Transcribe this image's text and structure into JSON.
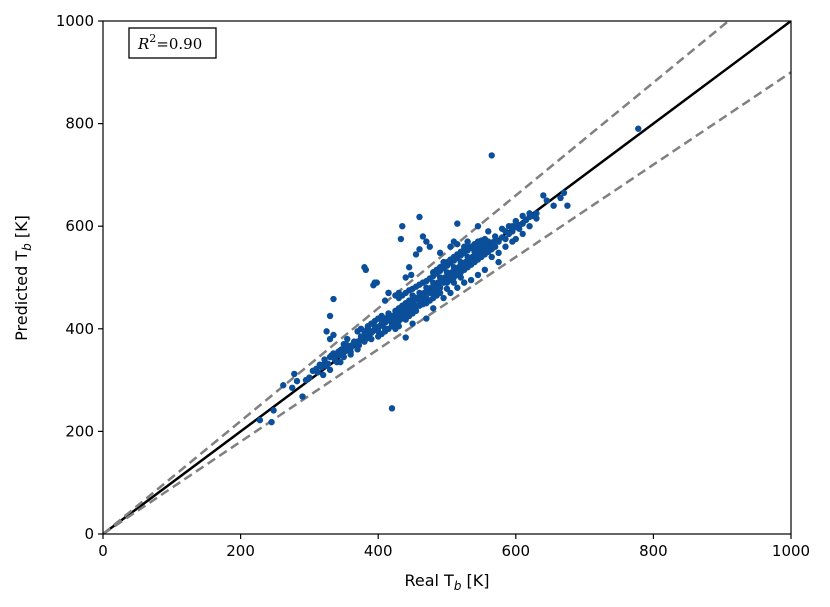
{
  "chart_data": {
    "type": "scatter",
    "xlabel": "Real T",
    "xlabel_sub": "b",
    "xlabel_unit": " [K]",
    "ylabel": "Predicted T",
    "ylabel_sub": "b",
    "ylabel_unit": " [K]",
    "xlim": [
      0,
      1000
    ],
    "ylim": [
      0,
      1000
    ],
    "xticks": [
      0,
      200,
      400,
      600,
      800,
      1000
    ],
    "yticks": [
      0,
      200,
      400,
      600,
      800,
      1000
    ],
    "grid": false,
    "annotation": {
      "r2_label": "R",
      "r2_sup": "2",
      "r2_value": "=0.90",
      "placement": "top-left"
    },
    "reference_lines": [
      {
        "name": "identity",
        "slope": 1.0,
        "style": "solid",
        "color": "#000000"
      },
      {
        "name": "upper-bound",
        "slope": 1.1,
        "style": "dashed",
        "color": "#808080"
      },
      {
        "name": "lower-bound",
        "slope": 0.9,
        "style": "dashed",
        "color": "#808080"
      }
    ],
    "point_color": "#0b4f9a",
    "points": [
      [
        228,
        222
      ],
      [
        245,
        218
      ],
      [
        248,
        241
      ],
      [
        262,
        290
      ],
      [
        275,
        285
      ],
      [
        278,
        312
      ],
      [
        282,
        298
      ],
      [
        290,
        268
      ],
      [
        295,
        300
      ],
      [
        300,
        305
      ],
      [
        305,
        318
      ],
      [
        310,
        322
      ],
      [
        312,
        315
      ],
      [
        318,
        325
      ],
      [
        320,
        330
      ],
      [
        322,
        340
      ],
      [
        325,
        328
      ],
      [
        327,
        332
      ],
      [
        330,
        345
      ],
      [
        332,
        348
      ],
      [
        335,
        352
      ],
      [
        337,
        340
      ],
      [
        340,
        350
      ],
      [
        342,
        355
      ],
      [
        345,
        348
      ],
      [
        347,
        360
      ],
      [
        350,
        355
      ],
      [
        352,
        362
      ],
      [
        355,
        358
      ],
      [
        357,
        365
      ],
      [
        360,
        362
      ],
      [
        362,
        368
      ],
      [
        365,
        370
      ],
      [
        367,
        372
      ],
      [
        370,
        375
      ],
      [
        372,
        368
      ],
      [
        375,
        380
      ],
      [
        377,
        378
      ],
      [
        380,
        385
      ],
      [
        382,
        388
      ],
      [
        385,
        382
      ],
      [
        387,
        390
      ],
      [
        390,
        392
      ],
      [
        392,
        395
      ],
      [
        395,
        398
      ],
      [
        397,
        400
      ],
      [
        400,
        402
      ],
      [
        402,
        405
      ],
      [
        405,
        408
      ],
      [
        407,
        410
      ],
      [
        410,
        412
      ],
      [
        412,
        415
      ],
      [
        415,
        418
      ],
      [
        417,
        420
      ],
      [
        420,
        422
      ],
      [
        422,
        425
      ],
      [
        425,
        428
      ],
      [
        427,
        430
      ],
      [
        430,
        432
      ],
      [
        432,
        435
      ],
      [
        435,
        438
      ],
      [
        437,
        440
      ],
      [
        440,
        442
      ],
      [
        442,
        445
      ],
      [
        445,
        448
      ],
      [
        447,
        450
      ],
      [
        450,
        452
      ],
      [
        452,
        455
      ],
      [
        455,
        458
      ],
      [
        457,
        460
      ],
      [
        460,
        462
      ],
      [
        462,
        465
      ],
      [
        465,
        468
      ],
      [
        467,
        470
      ],
      [
        470,
        472
      ],
      [
        472,
        475
      ],
      [
        475,
        478
      ],
      [
        477,
        480
      ],
      [
        480,
        482
      ],
      [
        482,
        485
      ],
      [
        485,
        488
      ],
      [
        487,
        490
      ],
      [
        490,
        492
      ],
      [
        492,
        495
      ],
      [
        495,
        498
      ],
      [
        497,
        500
      ],
      [
        500,
        502
      ],
      [
        502,
        505
      ],
      [
        505,
        508
      ],
      [
        507,
        510
      ],
      [
        510,
        512
      ],
      [
        512,
        515
      ],
      [
        515,
        518
      ],
      [
        517,
        520
      ],
      [
        520,
        522
      ],
      [
        522,
        525
      ],
      [
        525,
        528
      ],
      [
        527,
        530
      ],
      [
        530,
        532
      ],
      [
        532,
        535
      ],
      [
        535,
        538
      ],
      [
        537,
        540
      ],
      [
        540,
        542
      ],
      [
        542,
        545
      ],
      [
        545,
        548
      ],
      [
        547,
        550
      ],
      [
        550,
        552
      ],
      [
        552,
        555
      ],
      [
        555,
        558
      ],
      [
        557,
        560
      ],
      [
        560,
        562
      ],
      [
        562,
        565
      ],
      [
        565,
        568
      ],
      [
        570,
        572
      ],
      [
        575,
        570
      ],
      [
        580,
        578
      ],
      [
        585,
        575
      ],
      [
        590,
        585
      ],
      [
        595,
        590
      ],
      [
        600,
        598
      ],
      [
        605,
        602
      ],
      [
        610,
        605
      ],
      [
        615,
        612
      ],
      [
        620,
        618
      ],
      [
        625,
        620
      ],
      [
        630,
        625
      ],
      [
        640,
        660
      ],
      [
        645,
        650
      ],
      [
        655,
        640
      ],
      [
        665,
        655
      ],
      [
        670,
        665
      ],
      [
        675,
        640
      ],
      [
        778,
        790
      ],
      [
        410,
        420
      ],
      [
        415,
        430
      ],
      [
        420,
        425
      ],
      [
        425,
        415
      ],
      [
        430,
        440
      ],
      [
        435,
        425
      ],
      [
        440,
        450
      ],
      [
        445,
        435
      ],
      [
        450,
        465
      ],
      [
        455,
        445
      ],
      [
        460,
        470
      ],
      [
        465,
        455
      ],
      [
        470,
        480
      ],
      [
        475,
        470
      ],
      [
        480,
        490
      ],
      [
        485,
        475
      ],
      [
        490,
        500
      ],
      [
        495,
        490
      ],
      [
        500,
        510
      ],
      [
        505,
        495
      ],
      [
        510,
        520
      ],
      [
        515,
        505
      ],
      [
        520,
        530
      ],
      [
        525,
        515
      ],
      [
        530,
        540
      ],
      [
        535,
        525
      ],
      [
        540,
        550
      ],
      [
        545,
        535
      ],
      [
        550,
        560
      ],
      [
        555,
        545
      ],
      [
        560,
        570
      ],
      [
        565,
        555
      ],
      [
        470,
        493
      ],
      [
        475,
        498
      ],
      [
        480,
        503
      ],
      [
        485,
        508
      ],
      [
        490,
        513
      ],
      [
        495,
        518
      ],
      [
        500,
        523
      ],
      [
        505,
        528
      ],
      [
        510,
        533
      ],
      [
        515,
        538
      ],
      [
        520,
        543
      ],
      [
        525,
        548
      ],
      [
        530,
        553
      ],
      [
        535,
        558
      ],
      [
        540,
        563
      ],
      [
        545,
        568
      ],
      [
        380,
        375
      ],
      [
        385,
        395
      ],
      [
        390,
        380
      ],
      [
        395,
        405
      ],
      [
        400,
        395
      ],
      [
        405,
        415
      ],
      [
        410,
        400
      ],
      [
        415,
        425
      ],
      [
        420,
        410
      ],
      [
        425,
        435
      ],
      [
        430,
        420
      ],
      [
        435,
        445
      ],
      [
        440,
        430
      ],
      [
        445,
        455
      ],
      [
        450,
        440
      ],
      [
        455,
        460
      ],
      [
        360,
        355
      ],
      [
        365,
        375
      ],
      [
        370,
        360
      ],
      [
        375,
        385
      ],
      [
        340,
        335
      ],
      [
        345,
        358
      ],
      [
        350,
        345
      ],
      [
        355,
        368
      ],
      [
        350,
        370
      ],
      [
        355,
        380
      ],
      [
        320,
        310
      ],
      [
        315,
        330
      ],
      [
        345,
        335
      ],
      [
        360,
        350
      ],
      [
        335,
        345
      ],
      [
        330,
        320
      ],
      [
        500,
        490
      ],
      [
        510,
        500
      ],
      [
        520,
        510
      ],
      [
        530,
        520
      ],
      [
        540,
        530
      ],
      [
        550,
        540
      ],
      [
        560,
        550
      ],
      [
        570,
        560
      ],
      [
        460,
        455
      ],
      [
        470,
        460
      ],
      [
        480,
        470
      ],
      [
        490,
        480
      ],
      [
        500,
        495
      ],
      [
        510,
        505
      ],
      [
        520,
        515
      ],
      [
        530,
        525
      ],
      [
        480,
        510
      ],
      [
        485,
        515
      ],
      [
        490,
        520
      ],
      [
        495,
        525
      ],
      [
        500,
        530
      ],
      [
        505,
        535
      ],
      [
        510,
        540
      ],
      [
        515,
        545
      ],
      [
        520,
        550
      ],
      [
        525,
        555
      ],
      [
        530,
        558
      ],
      [
        535,
        560
      ],
      [
        540,
        565
      ],
      [
        545,
        570
      ],
      [
        550,
        572
      ],
      [
        555,
        575
      ],
      [
        430,
        460
      ],
      [
        435,
        465
      ],
      [
        440,
        470
      ],
      [
        445,
        475
      ],
      [
        450,
        478
      ],
      [
        455,
        482
      ],
      [
        460,
        486
      ],
      [
        465,
        490
      ],
      [
        490,
        470
      ],
      [
        500,
        478
      ],
      [
        510,
        490
      ],
      [
        520,
        500
      ],
      [
        480,
        460
      ],
      [
        470,
        450
      ],
      [
        460,
        445
      ],
      [
        450,
        430
      ],
      [
        425,
        400
      ],
      [
        430,
        405
      ],
      [
        440,
        418
      ],
      [
        445,
        425
      ],
      [
        455,
        435
      ],
      [
        465,
        448
      ],
      [
        475,
        455
      ],
      [
        485,
        465
      ],
      [
        565,
        540
      ],
      [
        575,
        548
      ],
      [
        585,
        560
      ],
      [
        595,
        570
      ],
      [
        600,
        575
      ],
      [
        610,
        585
      ],
      [
        620,
        600
      ],
      [
        630,
        615
      ],
      [
        580,
        595
      ],
      [
        590,
        600
      ],
      [
        600,
        610
      ],
      [
        610,
        620
      ],
      [
        620,
        625
      ],
      [
        585,
        590
      ],
      [
        595,
        600
      ],
      [
        605,
        595
      ],
      [
        540,
        555
      ],
      [
        545,
        560
      ],
      [
        550,
        565
      ],
      [
        555,
        570
      ],
      [
        545,
        540
      ],
      [
        550,
        548
      ],
      [
        555,
        552
      ],
      [
        560,
        558
      ],
      [
        370,
        395
      ],
      [
        375,
        400
      ],
      [
        380,
        395
      ],
      [
        385,
        405
      ],
      [
        390,
        410
      ],
      [
        395,
        415
      ],
      [
        400,
        420
      ],
      [
        405,
        425
      ],
      [
        400,
        385
      ],
      [
        405,
        390
      ],
      [
        410,
        395
      ],
      [
        415,
        400
      ],
      [
        420,
        405
      ],
      [
        425,
        410
      ],
      [
        430,
        415
      ],
      [
        435,
        420
      ],
      [
        330,
        425
      ],
      [
        335,
        458
      ],
      [
        325,
        395
      ],
      [
        330,
        380
      ],
      [
        335,
        388
      ],
      [
        385,
        402
      ],
      [
        390,
        395
      ],
      [
        393,
        485
      ],
      [
        395,
        490
      ],
      [
        380,
        520
      ],
      [
        382,
        515
      ],
      [
        398,
        490
      ],
      [
        415,
        470
      ],
      [
        410,
        455
      ],
      [
        430,
        470
      ],
      [
        435,
        600
      ],
      [
        433,
        575
      ],
      [
        445,
        520
      ],
      [
        448,
        505
      ],
      [
        455,
        545
      ],
      [
        460,
        618
      ],
      [
        465,
        580
      ],
      [
        460,
        555
      ],
      [
        470,
        570
      ],
      [
        475,
        560
      ],
      [
        480,
        510
      ],
      [
        490,
        548
      ],
      [
        495,
        530
      ],
      [
        500,
        525
      ],
      [
        505,
        560
      ],
      [
        510,
        570
      ],
      [
        515,
        565
      ],
      [
        520,
        515
      ],
      [
        525,
        560
      ],
      [
        530,
        570
      ],
      [
        545,
        600
      ],
      [
        560,
        590
      ],
      [
        565,
        738
      ],
      [
        570,
        580
      ],
      [
        515,
        605
      ],
      [
        415,
        470
      ],
      [
        425,
        465
      ],
      [
        440,
        500
      ],
      [
        420,
        245
      ],
      [
        440,
        383
      ],
      [
        470,
        420
      ],
      [
        480,
        440
      ],
      [
        450,
        410
      ],
      [
        495,
        460
      ],
      [
        505,
        470
      ],
      [
        515,
        480
      ],
      [
        525,
        490
      ],
      [
        535,
        495
      ],
      [
        545,
        505
      ],
      [
        555,
        515
      ],
      [
        575,
        530
      ]
    ]
  }
}
